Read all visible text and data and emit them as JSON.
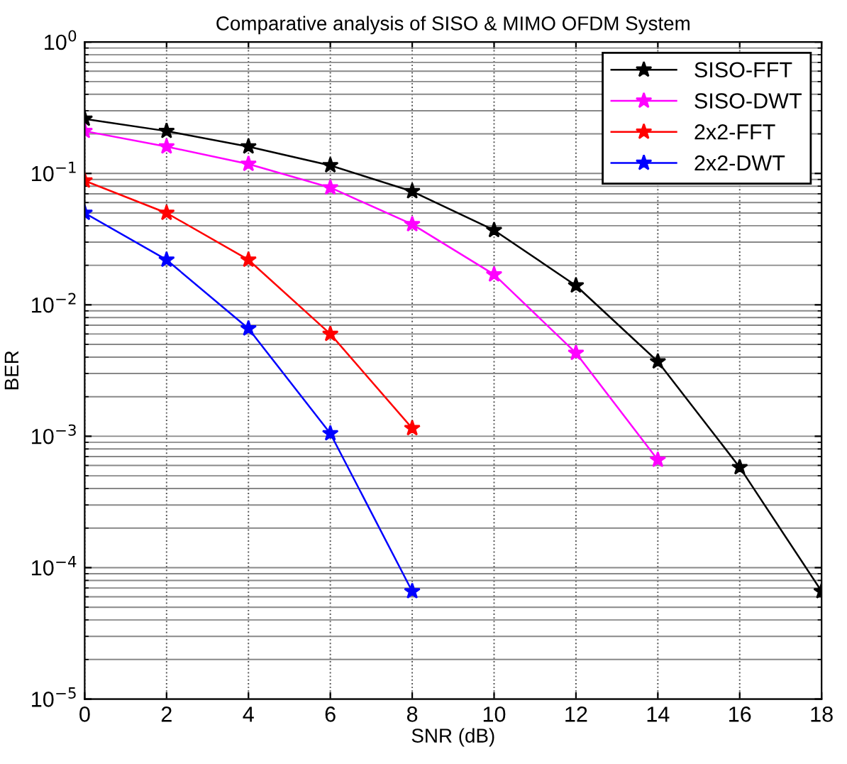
{
  "chart_data": {
    "type": "line",
    "title": "Comparative analysis of SISO & MIMO OFDM System",
    "xlabel": "SNR (dB)",
    "ylabel": "BER",
    "log": "y",
    "grid": true,
    "legend": "top right",
    "marker": "star",
    "line_style": "solid",
    "xlim": [
      0,
      18
    ],
    "xticks": [
      0,
      2,
      4,
      6,
      8,
      10,
      12,
      14,
      16,
      18
    ],
    "ylim": [
      1e-05,
      1
    ],
    "yticks": [
      {
        "value": 1e-05,
        "label": "10$^{−5}$"
      },
      {
        "value": 0.0001,
        "label": "10$^{−4}$"
      },
      {
        "value": 0.001,
        "label": "10$^{−3}$"
      },
      {
        "value": 0.01,
        "label": "10$^{−2}$"
      },
      {
        "value": 0.1,
        "label": "10$^{−1}$"
      },
      {
        "value": 1,
        "label": "10$^{0}$"
      }
    ],
    "series": [
      {
        "name": "SISO-FFT",
        "color": "#000000",
        "x": [
          0,
          2,
          4,
          6,
          8,
          10,
          12,
          14,
          16,
          18
        ],
        "values": [
          0.26,
          0.21,
          0.16,
          0.115,
          0.073,
          0.037,
          0.014,
          0.0037,
          0.00058,
          6.6e-05
        ]
      },
      {
        "name": "SISO-DWT",
        "color": "#ff00ff",
        "x": [
          0,
          2,
          4,
          6,
          8,
          10,
          12,
          14
        ],
        "values": [
          0.21,
          0.16,
          0.118,
          0.078,
          0.041,
          0.017,
          0.0043,
          0.00066
        ]
      },
      {
        "name": "2x2-FFT",
        "color": "#ff0000",
        "x": [
          0,
          2,
          4,
          6,
          8
        ],
        "values": [
          0.088,
          0.05,
          0.022,
          0.006,
          0.00115
        ]
      },
      {
        "name": "2x2-DWT",
        "color": "#0000ff",
        "x": [
          0,
          2,
          4,
          6,
          8
        ],
        "values": [
          0.05,
          0.022,
          0.0066,
          0.00105,
          6.6e-05
        ]
      }
    ]
  }
}
